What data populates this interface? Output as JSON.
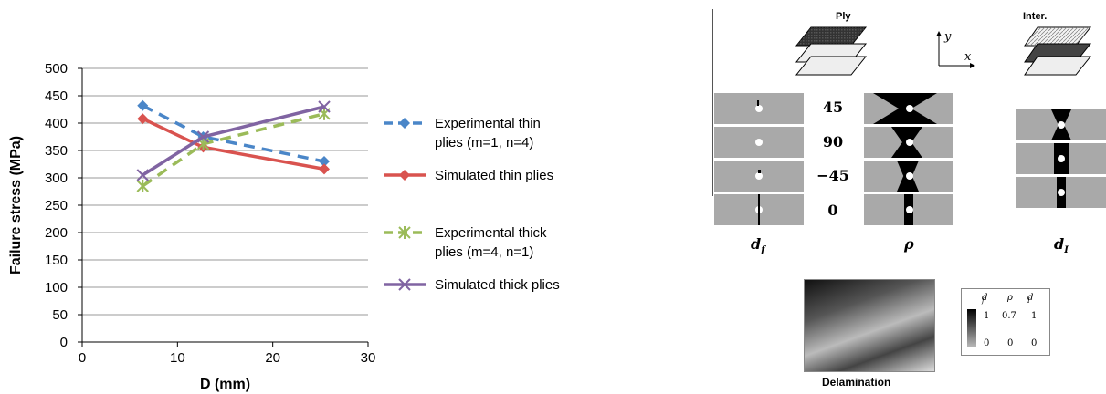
{
  "chart_data": {
    "type": "line",
    "xlabel": "D (mm)",
    "ylabel": "Failure stress (MPa)",
    "xlim": [
      0,
      30
    ],
    "ylim": [
      0,
      500
    ],
    "xticks": [
      0,
      10,
      20,
      30
    ],
    "yticks": [
      0,
      50,
      100,
      150,
      200,
      250,
      300,
      350,
      400,
      450,
      500
    ],
    "grid": "horizontal",
    "legend_position": "right",
    "series": [
      {
        "name": "Experimental thin plies (m=1, n=4)",
        "legend_lines": [
          "Experimental thin",
          "plies (m=1, n=4)"
        ],
        "color": "#4a86c8",
        "dash": true,
        "marker": "diamond",
        "x": [
          6.35,
          12.7,
          25.4
        ],
        "y": [
          432,
          375,
          330
        ]
      },
      {
        "name": "Simulated thin plies",
        "legend_lines": [
          "Simulated thin plies"
        ],
        "color": "#d9534f",
        "dash": false,
        "marker": "diamond",
        "x": [
          6.35,
          12.7,
          25.4
        ],
        "y": [
          408,
          356,
          316
        ]
      },
      {
        "name": "Experimental thick plies (m=4, n=1)",
        "legend_lines": [
          "Experimental thick",
          "plies (m=4, n=1)"
        ],
        "color": "#9bbb59",
        "dash": true,
        "marker": "star",
        "x": [
          6.35,
          12.7,
          25.4
        ],
        "y": [
          285,
          362,
          417
        ]
      },
      {
        "name": "Simulated thick plies",
        "legend_lines": [
          "Simulated thick plies"
        ],
        "color": "#8064a2",
        "dash": false,
        "marker": "x",
        "x": [
          6.35,
          12.7,
          25.4
        ],
        "y": [
          305,
          375,
          430
        ]
      }
    ]
  },
  "figure": {
    "ply_label": "Ply",
    "inter_label": "Inter.",
    "angles": [
      "45",
      "90",
      "−45",
      "0"
    ],
    "col_df": "d",
    "col_df_sub": "f",
    "col_rho": "ρ",
    "col_di": "d",
    "col_di_sub": "I",
    "axis_y": "y",
    "axis_x": "x",
    "delamination_label": "Delamination",
    "colorbar": {
      "h1": "d",
      "h1s": "f",
      "h2": "ρ",
      "h3": "d",
      "h3s": "I",
      "max1": "1",
      "max2": "0.7",
      "max3": "1",
      "min1": "0",
      "min2": "0",
      "min3": "0"
    }
  }
}
